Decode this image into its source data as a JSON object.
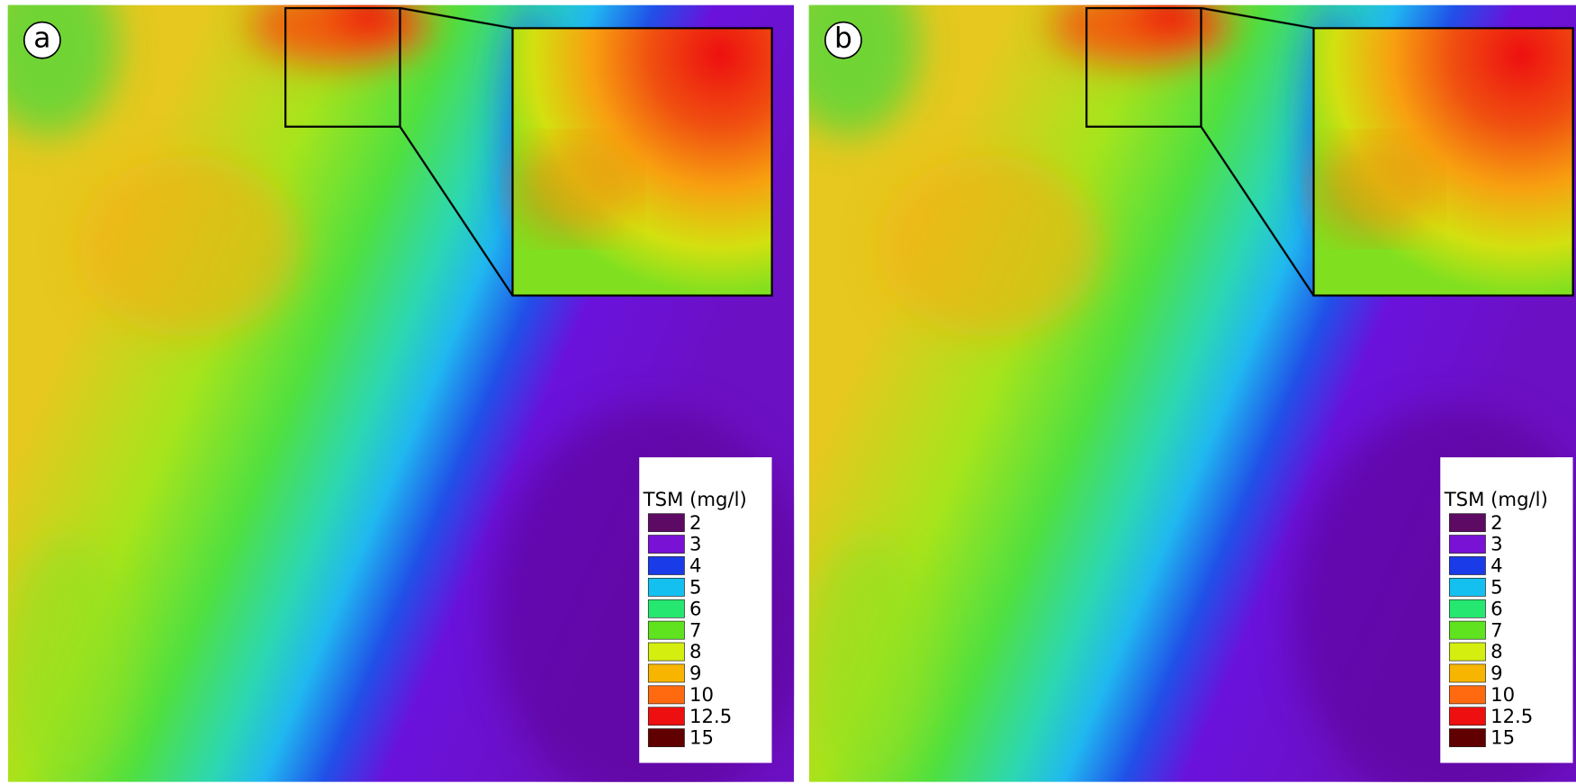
{
  "panels": [
    {
      "label": "a"
    },
    {
      "label": "b"
    }
  ],
  "legend": {
    "title": "TSM (mg/l)",
    "items": [
      {
        "label": 2,
        "color": "#5c0a63"
      },
      {
        "label": 3,
        "color": "#7a12d6"
      },
      {
        "label": 4,
        "color": "#1a3be8"
      },
      {
        "label": 5,
        "color": "#14c0f0"
      },
      {
        "label": 6,
        "color": "#26e870"
      },
      {
        "label": 7,
        "color": "#5ee31e"
      },
      {
        "label": 8,
        "color": "#d4ee10"
      },
      {
        "label": 9,
        "color": "#f8b500"
      },
      {
        "label": 10,
        "color": "#ff6a10"
      },
      {
        "label": 12.5,
        "color": "#ee1010"
      },
      {
        "label": 15,
        "color": "#600000"
      }
    ]
  }
}
